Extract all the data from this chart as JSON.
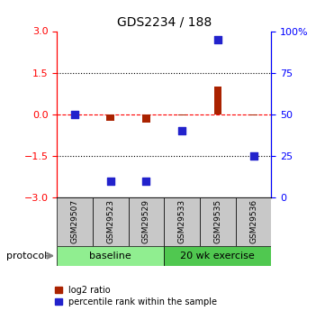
{
  "title": "GDS2234 / 188",
  "samples": [
    "GSM29507",
    "GSM29523",
    "GSM29529",
    "GSM29533",
    "GSM29535",
    "GSM29536"
  ],
  "log2_ratio": [
    0.0,
    -0.25,
    -0.3,
    -0.05,
    1.0,
    -0.05
  ],
  "percentile_rank_pct": [
    50,
    10,
    10,
    40,
    95,
    25
  ],
  "ylim_left": [
    -3,
    3
  ],
  "ylim_right": [
    0,
    100
  ],
  "yticks_left": [
    -3,
    -1.5,
    0,
    1.5,
    3
  ],
  "yticks_right": [
    0,
    25,
    50,
    75,
    100
  ],
  "ytick_labels_right": [
    "0",
    "25",
    "50",
    "75",
    "100%"
  ],
  "hlines": [
    1.5,
    -1.5
  ],
  "protocols": [
    {
      "label": "baseline",
      "start": 0,
      "end": 3,
      "color": "#90EE90"
    },
    {
      "label": "20 wk exercise",
      "start": 3,
      "end": 6,
      "color": "#50C850"
    }
  ],
  "bar_color_red": "#AA2200",
  "blue_square_color": "#2222CC",
  "legend_red": "log2 ratio",
  "legend_blue": "percentile rank within the sample",
  "protocol_label": "protocol"
}
